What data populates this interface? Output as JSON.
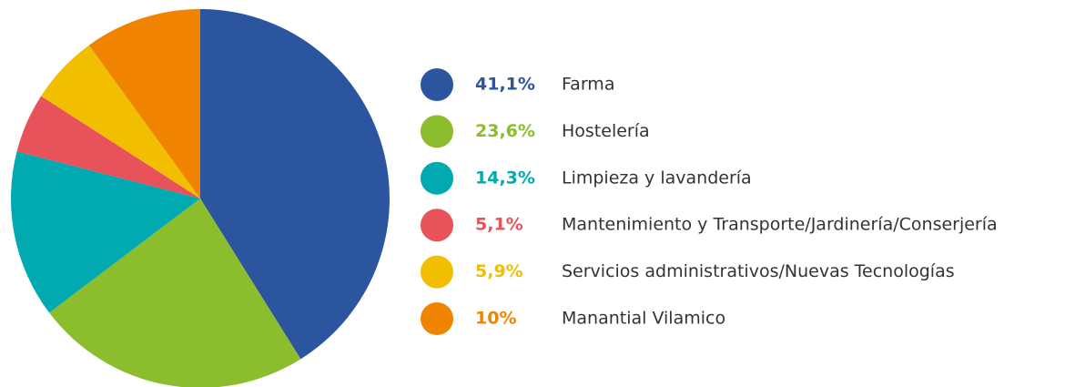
{
  "chart_data": {
    "type": "pie",
    "categories": [
      "Farma",
      "Hostelería",
      "Limpieza y lavandería",
      "Mantenimiento y Transporte/Jardinería/Conserjería",
      "Servicios administrativos/Nuevas Tecnologías",
      "Manantial Vilamico"
    ],
    "values": [
      41.1,
      23.6,
      14.3,
      5.1,
      5.9,
      10
    ],
    "value_labels": [
      "41,1%",
      "23,6%",
      "14,3%",
      "5,1%",
      "5,9%",
      "10%"
    ],
    "colors": [
      "#2c55a0",
      "#8bbd2d",
      "#00aab0",
      "#e8525a",
      "#f2be00",
      "#f08300"
    ]
  }
}
